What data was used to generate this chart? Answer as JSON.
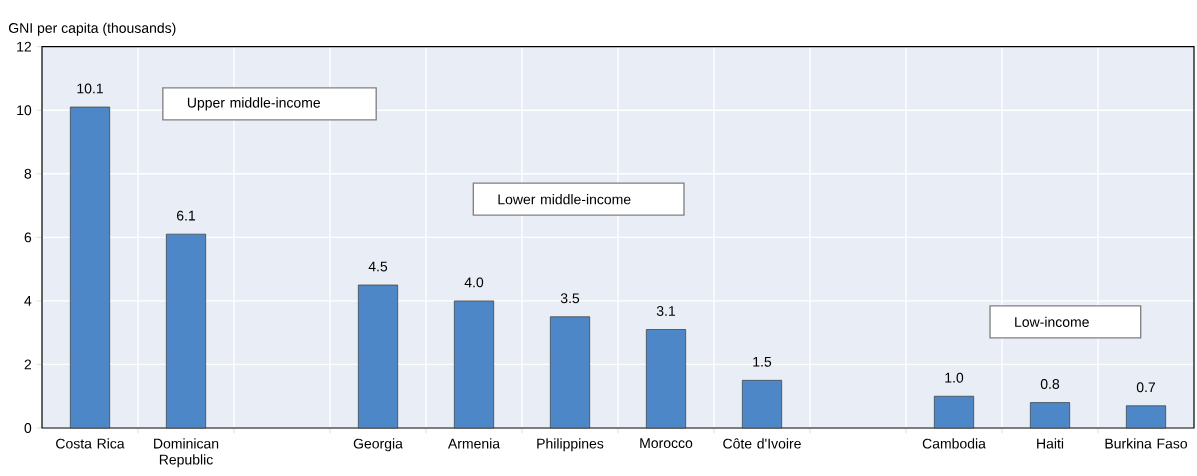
{
  "chart_data": {
    "type": "bar",
    "ylabel": "GNI per capita (thousands)",
    "categories": [
      "Costa Rica",
      "Dominican Republic",
      null,
      "Georgia",
      "Armenia",
      "Philippines",
      "Morocco",
      "Côte d'Ivoire",
      null,
      "Cambodia",
      "Haiti",
      "Burkina Faso"
    ],
    "values": [
      10.1,
      6.1,
      null,
      4.5,
      4.0,
      3.5,
      3.1,
      1.5,
      null,
      1.0,
      0.8,
      0.7
    ],
    "value_labels": [
      "10.1",
      "6.1",
      null,
      "4.5",
      "4.0",
      "3.5",
      "3.1",
      "1.5",
      null,
      "1.0",
      "0.8",
      "0.7"
    ],
    "color": "#4e87c8",
    "ylim": [
      0,
      12
    ],
    "yticks": [
      0,
      2,
      4,
      6,
      8,
      10,
      12
    ],
    "grid": true,
    "annotations": [
      "Upper middle-income",
      "Lower middle-income",
      "Low-income"
    ]
  }
}
